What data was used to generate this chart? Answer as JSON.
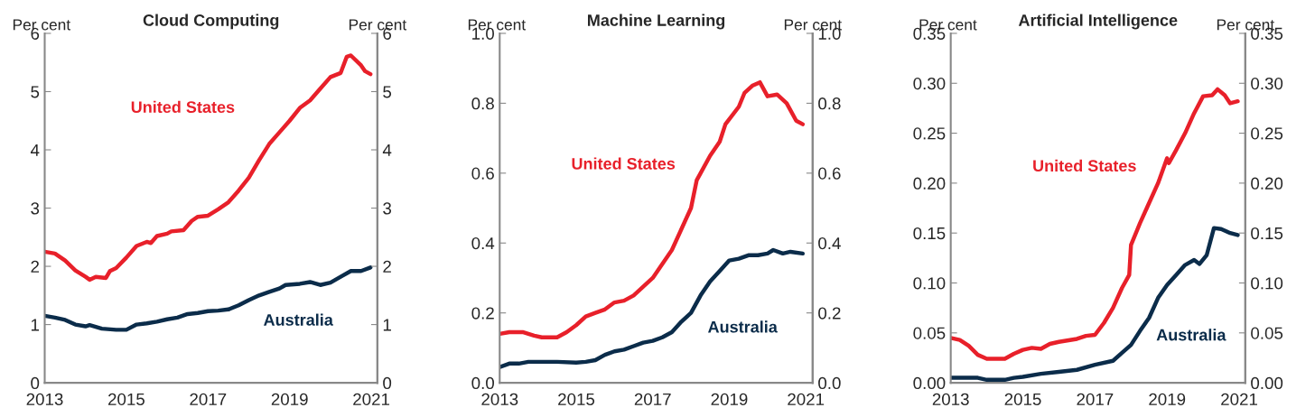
{
  "chart_data": [
    {
      "type": "line",
      "title": "Cloud Computing",
      "ylabel": "Per cent",
      "y2label": "Per cent",
      "xlim": [
        2013,
        2021.15
      ],
      "xticks": [
        2013,
        2015,
        2017,
        2019,
        2021
      ],
      "ylim": [
        0,
        6
      ],
      "yticks": [
        0,
        1,
        2,
        3,
        4,
        5,
        6
      ],
      "y2lim": [
        0,
        6
      ],
      "y2ticks": [
        0,
        1,
        2,
        3,
        4,
        5,
        6
      ],
      "grid": false,
      "series": [
        {
          "name": "United States",
          "color": "#e8202a",
          "x": [
            2013.0,
            2013.25,
            2013.5,
            2013.75,
            2014.0,
            2014.1,
            2014.25,
            2014.5,
            2014.6,
            2014.75,
            2015.0,
            2015.25,
            2015.5,
            2015.6,
            2015.75,
            2016.0,
            2016.1,
            2016.4,
            2016.6,
            2016.75,
            2017.0,
            2017.25,
            2017.5,
            2017.75,
            2018.0,
            2018.25,
            2018.5,
            2018.75,
            2019.0,
            2019.25,
            2019.5,
            2019.75,
            2020.0,
            2020.25,
            2020.4,
            2020.5,
            2020.75,
            2020.85,
            2020.98
          ],
          "values": [
            2.25,
            2.22,
            2.1,
            1.93,
            1.82,
            1.77,
            1.82,
            1.8,
            1.92,
            1.97,
            2.15,
            2.35,
            2.42,
            2.4,
            2.52,
            2.56,
            2.6,
            2.62,
            2.78,
            2.85,
            2.87,
            2.98,
            3.1,
            3.3,
            3.52,
            3.82,
            4.1,
            4.3,
            4.5,
            4.72,
            4.85,
            5.05,
            5.25,
            5.32,
            5.6,
            5.62,
            5.45,
            5.35,
            5.3
          ]
        },
        {
          "name": "Australia",
          "color": "#0b2c4a",
          "x": [
            2013.0,
            2013.25,
            2013.5,
            2013.75,
            2014.0,
            2014.1,
            2014.4,
            2014.75,
            2015.0,
            2015.25,
            2015.5,
            2015.75,
            2016.0,
            2016.25,
            2016.5,
            2016.75,
            2017.0,
            2017.25,
            2017.5,
            2017.75,
            2018.0,
            2018.25,
            2018.5,
            2018.75,
            2018.9,
            2019.25,
            2019.5,
            2019.75,
            2020.0,
            2020.25,
            2020.5,
            2020.75,
            2020.98
          ],
          "values": [
            1.15,
            1.12,
            1.08,
            1.0,
            0.97,
            0.99,
            0.93,
            0.91,
            0.91,
            1.0,
            1.02,
            1.05,
            1.09,
            1.12,
            1.18,
            1.2,
            1.23,
            1.24,
            1.26,
            1.33,
            1.42,
            1.5,
            1.56,
            1.62,
            1.68,
            1.7,
            1.73,
            1.68,
            1.72,
            1.82,
            1.92,
            1.92,
            1.98
          ]
        }
      ]
    },
    {
      "type": "line",
      "title": "Machine Learning",
      "ylabel": "Per cent",
      "y2label": "Per cent",
      "xlim": [
        2013,
        2021.18
      ],
      "xticks": [
        2013,
        2015,
        2017,
        2019,
        2021
      ],
      "ylim": [
        0,
        1.0
      ],
      "yticks": [
        {
          "value": 0,
          "label": "0.0"
        },
        0.2,
        0.4,
        0.6,
        0.8,
        {
          "value": 1,
          "label": "1.0"
        }
      ],
      "y2lim": [
        0,
        1.0
      ],
      "y2ticks": [
        {
          "value": 0,
          "label": "0.0"
        },
        0.2,
        0.4,
        0.6,
        0.8,
        {
          "value": 1,
          "label": "1.0"
        }
      ],
      "grid": false,
      "series": [
        {
          "name": "United States",
          "color": "#e8202a",
          "x": [
            2013.0,
            2013.25,
            2013.6,
            2013.9,
            2014.1,
            2014.5,
            2014.75,
            2015.0,
            2015.25,
            2015.5,
            2015.75,
            2016.0,
            2016.25,
            2016.5,
            2016.75,
            2017.0,
            2017.25,
            2017.5,
            2017.75,
            2018.0,
            2018.15,
            2018.25,
            2018.5,
            2018.75,
            2018.9,
            2019.25,
            2019.4,
            2019.6,
            2019.8,
            2020.0,
            2020.25,
            2020.5,
            2020.75,
            2020.92
          ],
          "values": [
            0.14,
            0.145,
            0.145,
            0.135,
            0.13,
            0.13,
            0.145,
            0.165,
            0.19,
            0.2,
            0.21,
            0.23,
            0.235,
            0.25,
            0.275,
            0.3,
            0.34,
            0.38,
            0.44,
            0.5,
            0.58,
            0.6,
            0.65,
            0.69,
            0.74,
            0.79,
            0.83,
            0.85,
            0.86,
            0.82,
            0.825,
            0.8,
            0.75,
            0.74
          ]
        },
        {
          "name": "Australia",
          "color": "#0b2c4a",
          "x": [
            2013.0,
            2013.25,
            2013.5,
            2013.75,
            2014.5,
            2015.0,
            2015.25,
            2015.5,
            2015.75,
            2016.0,
            2016.25,
            2016.5,
            2016.75,
            2017.0,
            2017.25,
            2017.5,
            2017.75,
            2018.0,
            2018.25,
            2018.5,
            2018.75,
            2019.0,
            2019.25,
            2019.5,
            2019.75,
            2020.0,
            2020.15,
            2020.4,
            2020.6,
            2020.92
          ],
          "values": [
            0.045,
            0.055,
            0.055,
            0.06,
            0.06,
            0.058,
            0.06,
            0.065,
            0.08,
            0.09,
            0.095,
            0.105,
            0.115,
            0.12,
            0.13,
            0.145,
            0.175,
            0.2,
            0.25,
            0.29,
            0.32,
            0.35,
            0.355,
            0.365,
            0.365,
            0.37,
            0.38,
            0.37,
            0.375,
            0.37
          ]
        }
      ]
    },
    {
      "type": "line",
      "title": "Artificial Intelligence",
      "ylabel": "Per cent",
      "y2label": "Per cent",
      "xlim": [
        2013,
        2021.17
      ],
      "xticks": [
        2013,
        2015,
        2017,
        2019,
        2021
      ],
      "ylim": [
        0,
        0.35
      ],
      "yticks": [
        {
          "value": 0,
          "label": "0.00"
        },
        0.05,
        {
          "value": 0.1,
          "label": "0.10"
        },
        0.15,
        {
          "value": 0.2,
          "label": "0.20"
        },
        0.25,
        {
          "value": 0.3,
          "label": "0.30"
        },
        0.35
      ],
      "y2lim": [
        0,
        0.35
      ],
      "y2ticks": [
        {
          "value": 0,
          "label": "0.00"
        },
        0.05,
        {
          "value": 0.1,
          "label": "0.10"
        },
        0.15,
        {
          "value": 0.2,
          "label": "0.20"
        },
        0.25,
        {
          "value": 0.3,
          "label": "0.30"
        },
        0.35
      ],
      "grid": false,
      "series": [
        {
          "name": "United States",
          "color": "#e8202a",
          "x": [
            2013.0,
            2013.25,
            2013.5,
            2013.75,
            2014.0,
            2014.5,
            2014.75,
            2015.0,
            2015.25,
            2015.5,
            2015.75,
            2016.0,
            2016.5,
            2016.75,
            2017.0,
            2017.25,
            2017.5,
            2017.75,
            2017.95,
            2018.0,
            2018.25,
            2018.5,
            2018.75,
            2019.0,
            2019.05,
            2019.25,
            2019.5,
            2019.75,
            2020.0,
            2020.25,
            2020.4,
            2020.6,
            2020.75,
            2020.96
          ],
          "values": [
            0.045,
            0.043,
            0.037,
            0.028,
            0.024,
            0.024,
            0.029,
            0.033,
            0.035,
            0.034,
            0.039,
            0.041,
            0.044,
            0.047,
            0.048,
            0.06,
            0.075,
            0.095,
            0.108,
            0.138,
            0.16,
            0.18,
            0.2,
            0.225,
            0.22,
            0.233,
            0.25,
            0.27,
            0.287,
            0.288,
            0.294,
            0.288,
            0.28,
            0.282
          ]
        },
        {
          "name": "Australia",
          "color": "#0b2c4a",
          "x": [
            2013.0,
            2013.75,
            2014.0,
            2014.5,
            2014.75,
            2015.0,
            2015.5,
            2016.0,
            2016.5,
            2017.0,
            2017.5,
            2017.75,
            2018.0,
            2018.25,
            2018.5,
            2018.75,
            2019.0,
            2019.25,
            2019.5,
            2019.75,
            2019.9,
            2020.1,
            2020.3,
            2020.5,
            2020.75,
            2020.96
          ],
          "values": [
            0.005,
            0.005,
            0.003,
            0.003,
            0.005,
            0.006,
            0.009,
            0.011,
            0.013,
            0.018,
            0.022,
            0.03,
            0.038,
            0.052,
            0.065,
            0.085,
            0.098,
            0.108,
            0.118,
            0.123,
            0.119,
            0.128,
            0.155,
            0.154,
            0.15,
            0.148
          ]
        }
      ]
    }
  ]
}
